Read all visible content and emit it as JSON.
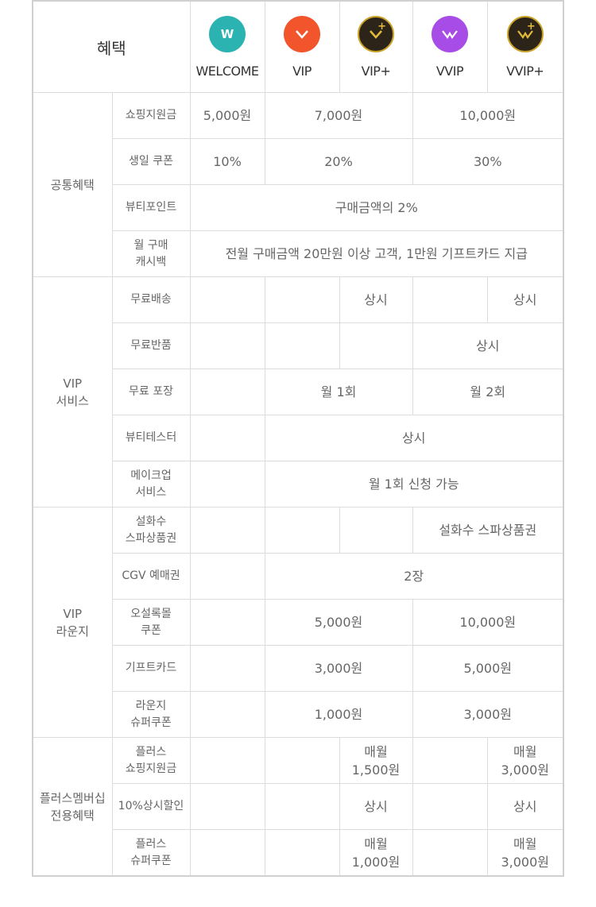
{
  "header": {
    "title": "혜택",
    "tiers": [
      {
        "name": "WELCOME",
        "icon": "welcome-badge-icon",
        "color": "#2bb3b1"
      },
      {
        "name": "VIP",
        "icon": "vip-badge-icon",
        "color": "#f2552c"
      },
      {
        "name": "VIP+",
        "icon": "vip-plus-badge-icon",
        "color": "#2c2418"
      },
      {
        "name": "VVIP",
        "icon": "vvip-badge-icon",
        "color": "#a74ce6"
      },
      {
        "name": "VVIP+",
        "icon": "vvip-plus-badge-icon",
        "color": "#2c2418"
      }
    ]
  },
  "sections": {
    "common": {
      "label": "공통혜택",
      "rows": {
        "shopping": {
          "label": "쇼핑지원금",
          "welcome": "5,000원",
          "vip": "7,000원",
          "vvip": "10,000원"
        },
        "birthday": {
          "label": "생일 쿠폰",
          "welcome": "10%",
          "vip": "20%",
          "vvip": "30%"
        },
        "beauty_point": {
          "label": "뷰티포인트",
          "all": "구매금액의 2%"
        },
        "cashback": {
          "label_1": "월 구매",
          "label_2": "캐시백",
          "all": "전월 구매금액 20만원 이상 고객, 1만원 기프트카드 지급"
        }
      }
    },
    "vip_service": {
      "label_1": "VIP",
      "label_2": "서비스",
      "rows": {
        "free_delivery": {
          "label": "무료배송",
          "vip_plus": "상시",
          "vvip_plus": "상시"
        },
        "free_return": {
          "label": "무료반품",
          "vvip": "상시"
        },
        "free_wrap": {
          "label": "무료 포장",
          "vip": "월 1회",
          "vvip": "월 2회"
        },
        "beauty_tester": {
          "label": "뷰티테스터",
          "all": "상시"
        },
        "makeup": {
          "label_1": "메이크업",
          "label_2": "서비스",
          "all": "월 1회 신청 가능"
        }
      }
    },
    "vip_lounge": {
      "label_1": "VIP",
      "label_2": "라운지",
      "rows": {
        "sulwhasoo": {
          "label_1": "설화수",
          "label_2": "스파상품권",
          "vvip": "설화수 스파상품권"
        },
        "cgv": {
          "label": "CGV 예매권",
          "all": "2장"
        },
        "osulloc": {
          "label_1": "오설록몰",
          "label_2": "쿠폰",
          "vip": "5,000원",
          "vvip": "10,000원"
        },
        "giftcard": {
          "label": "기프트카드",
          "vip": "3,000원",
          "vvip": "5,000원"
        },
        "lounge_coupon": {
          "label_1": "라운지",
          "label_2": "슈퍼쿠폰",
          "vip": "1,000원",
          "vvip": "3,000원"
        }
      }
    },
    "plus": {
      "label_1": "플러스멤버십",
      "label_2": "전용혜택",
      "rows": {
        "plus_shopping": {
          "label_1": "플러스",
          "label_2": "쇼핑지원금",
          "vip_plus_1": "매월",
          "vip_plus_2": "1,500원",
          "vvip_plus_1": "매월",
          "vvip_plus_2": "3,000원"
        },
        "discount": {
          "label": "10%상시할인",
          "vip_plus": "상시",
          "vvip_plus": "상시"
        },
        "plus_coupon": {
          "label_1": "플러스",
          "label_2": "슈퍼쿠폰",
          "vip_plus_1": "매월",
          "vip_plus_2": "1,000원",
          "vvip_plus_1": "매월",
          "vvip_plus_2": "3,000원"
        }
      }
    }
  }
}
